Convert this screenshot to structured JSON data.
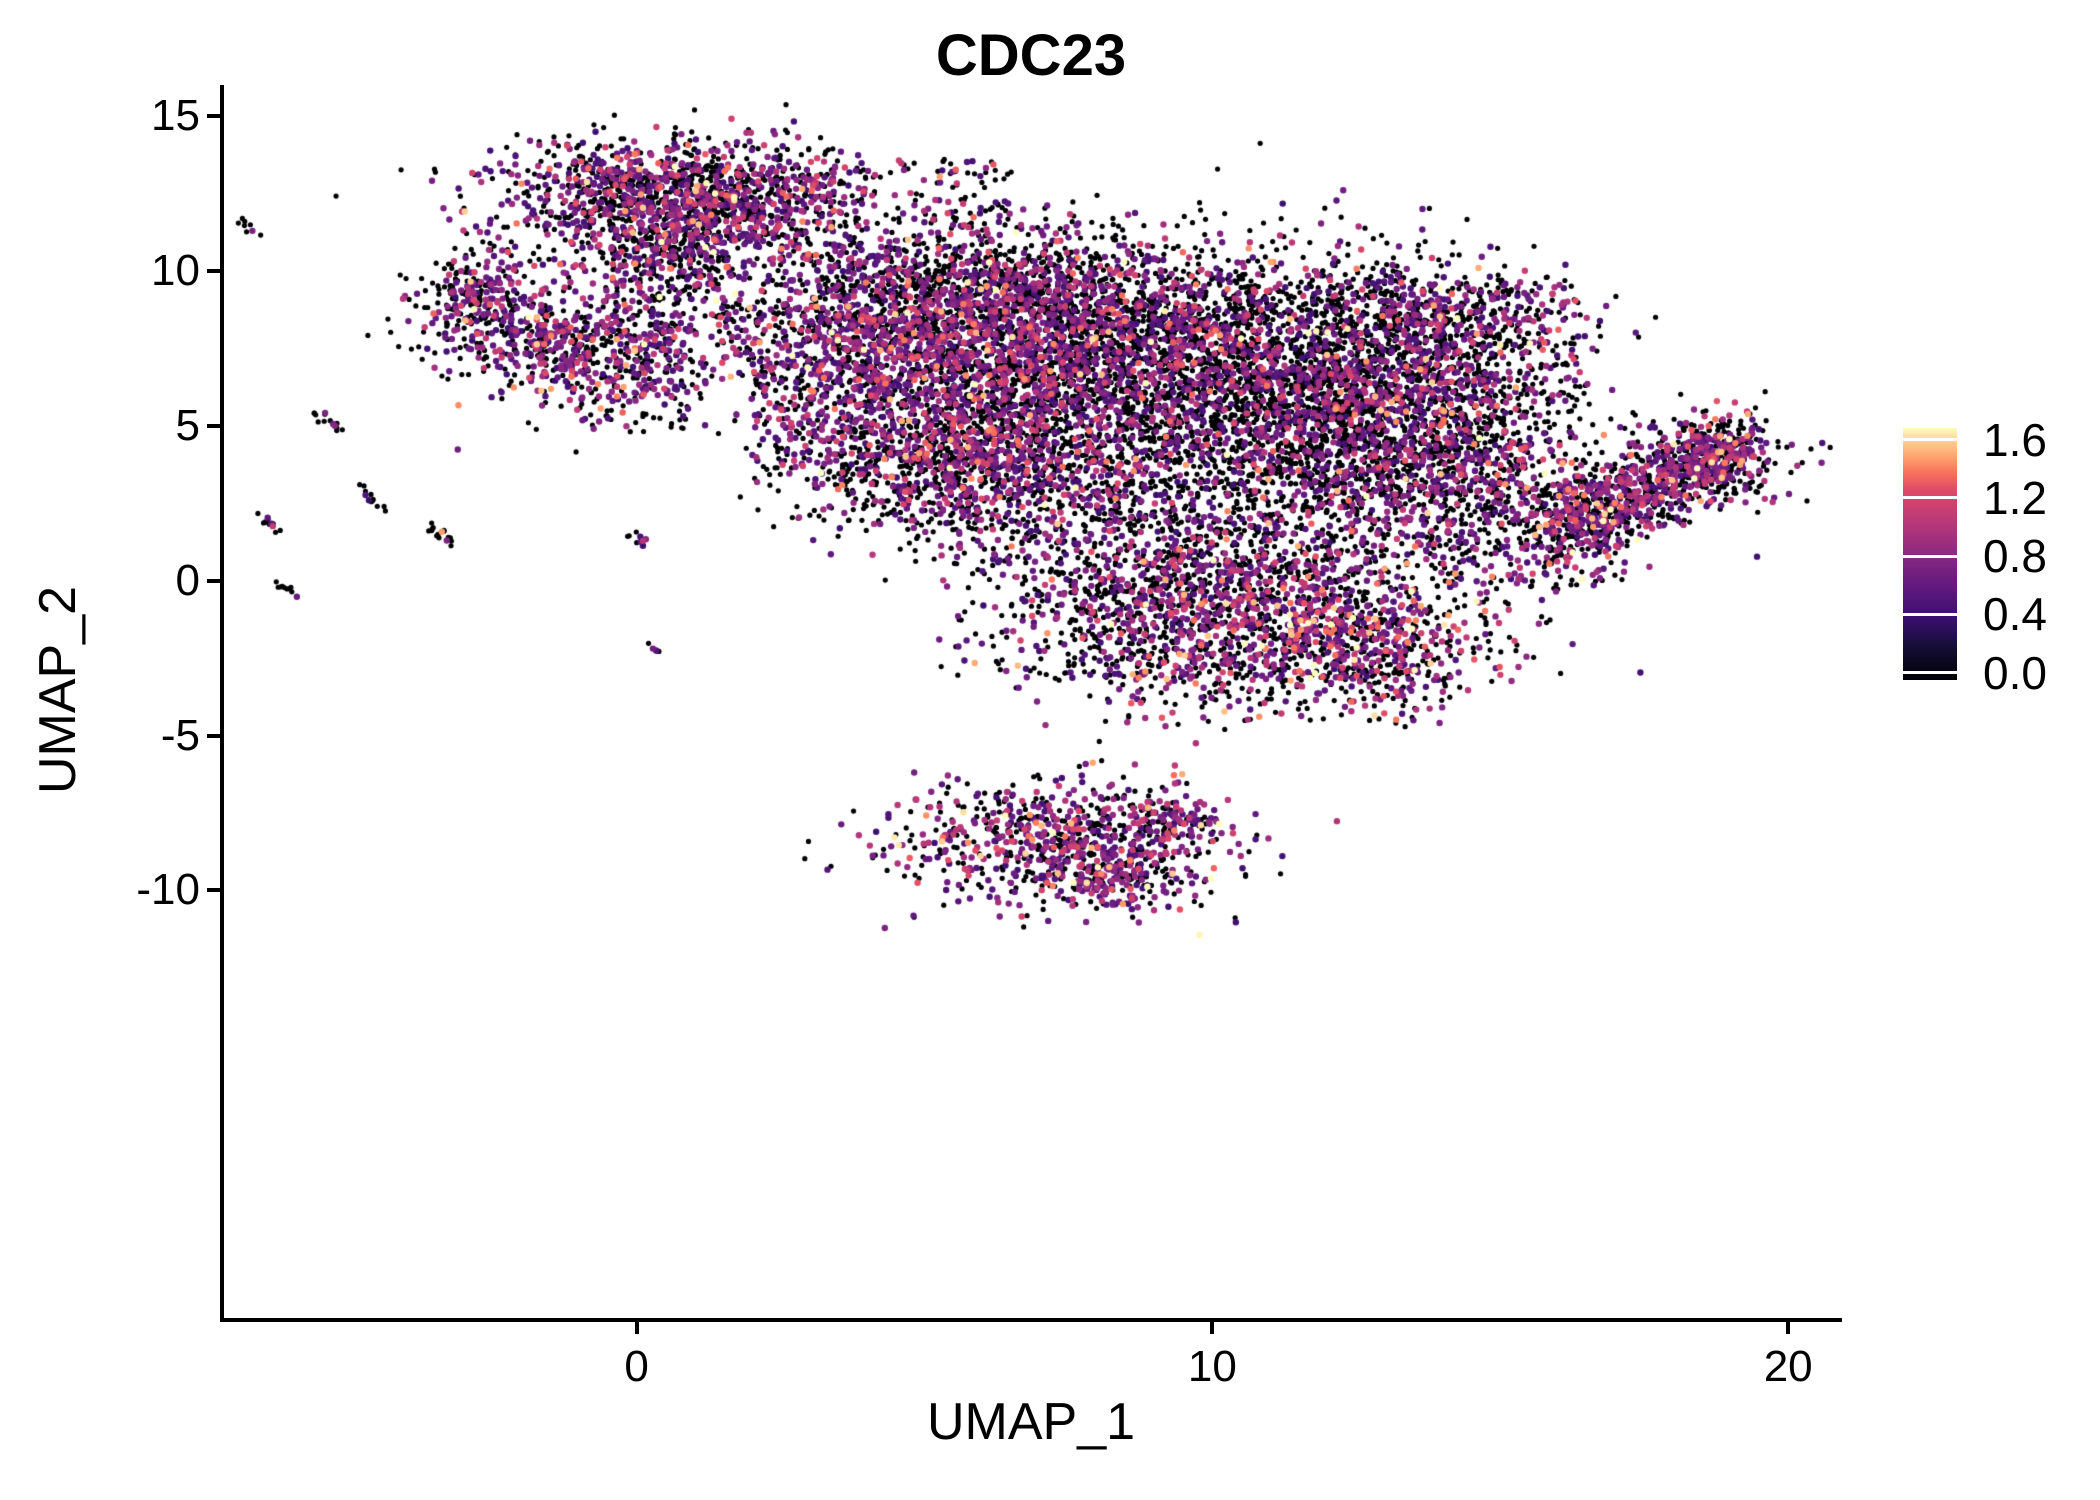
{
  "title": "CDC23",
  "colors": {
    "background": "#ffffff",
    "axis": "#000000",
    "text": "#000000"
  },
  "chart_data": {
    "type": "scatter",
    "title": "CDC23",
    "xlabel": "UMAP_1",
    "ylabel": "UMAP_2",
    "xlim": [
      -7.2,
      20.9
    ],
    "ylim": [
      -23.8,
      16.0
    ],
    "xticks": [
      0,
      10,
      20
    ],
    "xtick_labels": [
      "0",
      "10",
      "20"
    ],
    "yticks": [
      15,
      10,
      5,
      0,
      -5,
      -10
    ],
    "ytick_labels": [
      "15",
      "10",
      "5",
      "0",
      "-5",
      "-10"
    ],
    "grid": false,
    "legend_position": "right",
    "legend": {
      "tick_labels": [
        "1.6",
        "1.2",
        "0.8",
        "0.4",
        "0.0"
      ],
      "tick_values": [
        1.6,
        1.2,
        0.8,
        0.4,
        0.0
      ],
      "vmin": -0.05,
      "vmax": 1.68
    },
    "colormap": {
      "name": "magma",
      "domain": [
        0,
        1.6
      ],
      "stops": [
        [
          0.0,
          "#000004"
        ],
        [
          0.13,
          "#140e36"
        ],
        [
          0.25,
          "#3b0f70"
        ],
        [
          0.38,
          "#641a80"
        ],
        [
          0.5,
          "#8c2981"
        ],
        [
          0.62,
          "#b73779"
        ],
        [
          0.75,
          "#de4968"
        ],
        [
          0.82,
          "#f7705c"
        ],
        [
          0.88,
          "#fe9f6d"
        ],
        [
          0.94,
          "#fec98d"
        ],
        [
          1.0,
          "#fcfdbf"
        ]
      ]
    },
    "seed": 42,
    "point": {
      "radius_zero": 2.6,
      "radius_expr": 3.2
    },
    "clusters": [
      {
        "name": "top-main",
        "x": 0.4,
        "y": 12.4,
        "rx": 1.6,
        "ry": 0.95,
        "n": 1100,
        "p0": 0.5,
        "s": 1.0
      },
      {
        "name": "top-right-lobe",
        "x": 1.9,
        "y": 12.1,
        "rx": 0.9,
        "ry": 0.85,
        "n": 320,
        "p0": 0.5,
        "s": 1.0
      },
      {
        "name": "top-trail",
        "x": 0.6,
        "y": 10.4,
        "rx": 0.7,
        "ry": 0.9,
        "n": 220,
        "p0": 0.55,
        "s": 1.0
      },
      {
        "name": "left-upper-blob",
        "x": -2.5,
        "y": 8.6,
        "rx": 0.7,
        "ry": 1.1,
        "n": 300,
        "p0": 0.45,
        "s": 1.0
      },
      {
        "name": "left-upper-edge",
        "x": -2.95,
        "y": 9.4,
        "rx": 0.3,
        "ry": 0.45,
        "n": 80,
        "p0": 0.5,
        "s": 1.0
      },
      {
        "name": "left-mid-blob",
        "x": -0.4,
        "y": 7.3,
        "rx": 0.9,
        "ry": 0.95,
        "n": 420,
        "p0": 0.45,
        "s": 1.0
      },
      {
        "name": "left-mid-bridge",
        "x": -1.5,
        "y": 7.9,
        "rx": 0.4,
        "ry": 0.5,
        "n": 100,
        "p0": 0.5,
        "s": 1.0
      },
      {
        "name": "central-upper-left",
        "x": 4.3,
        "y": 8.2,
        "rx": 1.3,
        "ry": 1.4,
        "n": 1000,
        "p0": 0.45,
        "s": 1.0
      },
      {
        "name": "central-top",
        "x": 6.3,
        "y": 9.3,
        "rx": 1.4,
        "ry": 1.1,
        "n": 800,
        "p0": 0.55,
        "s": 1.0
      },
      {
        "name": "central-mid",
        "x": 8.3,
        "y": 7.8,
        "rx": 1.5,
        "ry": 1.5,
        "n": 1200,
        "p0": 0.6,
        "s": 1.0
      },
      {
        "name": "central-dark-core",
        "x": 10.8,
        "y": 6.2,
        "rx": 2.0,
        "ry": 2.2,
        "n": 2500,
        "p0": 0.72,
        "s": 0.95
      },
      {
        "name": "central-right",
        "x": 13.0,
        "y": 5.0,
        "rx": 1.5,
        "ry": 2.0,
        "n": 1400,
        "p0": 0.6,
        "s": 1.0
      },
      {
        "name": "central-left-lower",
        "x": 6.0,
        "y": 6.0,
        "rx": 1.3,
        "ry": 1.5,
        "n": 800,
        "p0": 0.5,
        "s": 1.0
      },
      {
        "name": "central-low-left",
        "x": 5.0,
        "y": 4.0,
        "rx": 1.2,
        "ry": 1.3,
        "n": 600,
        "p0": 0.55,
        "s": 1.0
      },
      {
        "name": "central-low-mid",
        "x": 7.2,
        "y": 3.2,
        "rx": 1.3,
        "ry": 1.4,
        "n": 700,
        "p0": 0.6,
        "s": 1.0
      },
      {
        "name": "lower-lobe",
        "x": 8.9,
        "y": -1.0,
        "rx": 1.1,
        "ry": 1.5,
        "n": 600,
        "p0": 0.5,
        "s": 1.05
      },
      {
        "name": "lower-right-blob",
        "x": 12.2,
        "y": -1.8,
        "rx": 1.5,
        "ry": 1.1,
        "n": 800,
        "p0": 0.45,
        "s": 1.1
      },
      {
        "name": "lower-bridge",
        "x": 10.5,
        "y": 0.5,
        "rx": 1.2,
        "ry": 1.2,
        "n": 400,
        "p0": 0.6,
        "s": 1.0
      },
      {
        "name": "right-mid",
        "x": 14.8,
        "y": 3.5,
        "rx": 1.2,
        "ry": 1.5,
        "n": 450,
        "p0": 0.55,
        "s": 1.0
      },
      {
        "name": "right-upper-arc",
        "x": 13.8,
        "y": 8.8,
        "rx": 1.3,
        "ry": 0.9,
        "n": 350,
        "p0": 0.55,
        "s": 1.0
      },
      {
        "name": "right-ribbon",
        "type": "streak",
        "x": 17.5,
        "y": 3.0,
        "angle": 43,
        "len": 4.6,
        "w": 0.35,
        "n": 900,
        "p0": 0.5,
        "s": 1.05
      },
      {
        "name": "right-ribbon-tip",
        "x": 18.9,
        "y": 3.9,
        "rx": 0.6,
        "ry": 0.7,
        "n": 220,
        "p0": 0.5,
        "s": 1.0
      },
      {
        "name": "bottom-main",
        "x": 7.4,
        "y": -8.4,
        "rx": 1.5,
        "ry": 0.95,
        "n": 750,
        "p0": 0.42,
        "s": 1.05
      },
      {
        "name": "bottom-tail",
        "x": 9.2,
        "y": -7.7,
        "rx": 0.5,
        "ry": 0.4,
        "n": 80,
        "p0": 0.45,
        "s": 1.0
      },
      {
        "name": "bottom-tip",
        "x": 8.3,
        "y": -9.7,
        "rx": 0.7,
        "ry": 0.5,
        "n": 160,
        "p0": 0.45,
        "s": 1.0
      },
      {
        "name": "streak-1",
        "type": "streak",
        "x": -6.73,
        "y": 11.4,
        "angle": -52,
        "len": 0.5,
        "w": 0.04,
        "n": 8,
        "p0": 0.8,
        "s": 0.9
      },
      {
        "name": "streak-2",
        "type": "streak",
        "x": -5.35,
        "y": 5.2,
        "angle": -52,
        "len": 0.7,
        "w": 0.045,
        "n": 14,
        "p0": 0.8,
        "s": 0.9
      },
      {
        "name": "streak-3",
        "type": "streak",
        "x": -4.55,
        "y": 2.6,
        "angle": -52,
        "len": 0.7,
        "w": 0.045,
        "n": 12,
        "p0": 0.8,
        "s": 0.9
      },
      {
        "name": "streak-4",
        "type": "streak",
        "x": -6.35,
        "y": 1.8,
        "angle": -52,
        "len": 0.7,
        "w": 0.045,
        "n": 14,
        "p0": 0.8,
        "s": 0.9
      },
      {
        "name": "streak-5",
        "type": "streak",
        "x": -6.05,
        "y": -0.25,
        "angle": -52,
        "len": 0.6,
        "w": 0.045,
        "n": 10,
        "p0": 0.8,
        "s": 0.9
      },
      {
        "name": "streak-6",
        "type": "streak",
        "x": -3.4,
        "y": 1.5,
        "angle": -52,
        "len": 0.7,
        "w": 0.045,
        "n": 16,
        "p0": 0.8,
        "s": 0.9
      },
      {
        "name": "streak-7",
        "type": "streak",
        "x": 0.0,
        "y": 1.45,
        "angle": -52,
        "len": 0.6,
        "w": 0.045,
        "n": 10,
        "p0": 0.8,
        "s": 0.9
      },
      {
        "name": "streak-8",
        "type": "streak",
        "x": 0.28,
        "y": -2.1,
        "angle": -52,
        "len": 0.3,
        "w": 0.04,
        "n": 5,
        "p0": 0.8,
        "s": 0.9
      }
    ],
    "sparse_regions": [
      {
        "name": "top-to-central",
        "x0": 2.2,
        "x1": 6.5,
        "y0": 9.5,
        "y1": 13.6,
        "n": 230,
        "p0": 0.6,
        "s": 1.0
      },
      {
        "name": "top-trail-sparse",
        "x0": -0.6,
        "x1": 1.6,
        "y0": 8.0,
        "y1": 11.2,
        "n": 140,
        "p0": 0.6,
        "s": 1.0
      },
      {
        "name": "below-left-blobs",
        "x0": -1.0,
        "x1": 1.2,
        "y0": 4.8,
        "y1": 6.6,
        "n": 60,
        "p0": 0.65,
        "s": 1.0
      },
      {
        "name": "left-of-central",
        "x0": 2.0,
        "x1": 4.2,
        "y0": 2.8,
        "y1": 7.2,
        "n": 170,
        "p0": 0.6,
        "s": 1.0
      },
      {
        "name": "blob-gap",
        "x0": 1.5,
        "x1": 3.0,
        "y0": 7.0,
        "y1": 9.0,
        "n": 60,
        "p0": 0.6,
        "s": 1.0
      },
      {
        "name": "below-core",
        "x0": 5.5,
        "x1": 13.5,
        "y0": -3.2,
        "y1": 0.8,
        "n": 300,
        "p0": 0.6,
        "s": 1.0
      },
      {
        "name": "right-upper-sparse",
        "x0": 13.4,
        "x1": 16.4,
        "y0": 5.8,
        "y1": 9.6,
        "n": 200,
        "p0": 0.6,
        "s": 1.0
      },
      {
        "name": "core-to-ribbon",
        "x0": 13.8,
        "x1": 17.2,
        "y0": -0.2,
        "y1": 3.0,
        "n": 160,
        "p0": 0.6,
        "s": 1.0
      },
      {
        "name": "below-lower-right",
        "x0": 9.8,
        "x1": 13.8,
        "y0": -4.6,
        "y1": -2.6,
        "n": 90,
        "p0": 0.55,
        "s": 1.0
      },
      {
        "name": "bottom-right-dots",
        "x0": 9.4,
        "x1": 10.0,
        "y0": -7.9,
        "y1": -7.3,
        "n": 14,
        "p0": 0.5,
        "s": 1.0
      },
      {
        "name": "core-fill",
        "x0": 3.0,
        "x1": 15.0,
        "y0": 0.0,
        "y1": 10.0,
        "n": 120,
        "p0": 0.7,
        "s": 1.0
      }
    ]
  }
}
